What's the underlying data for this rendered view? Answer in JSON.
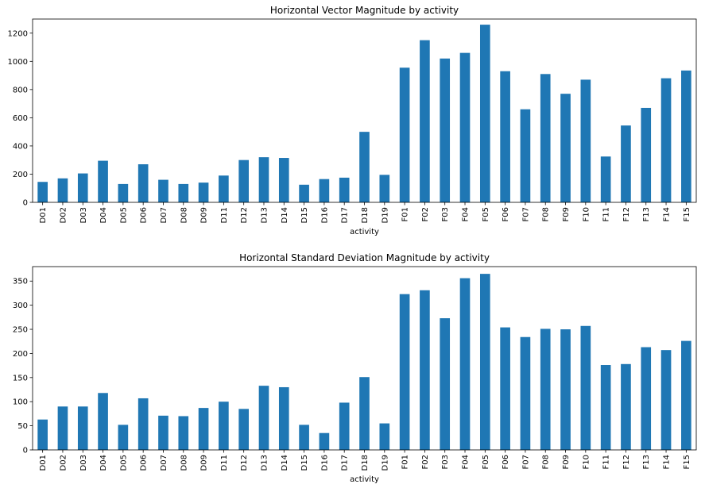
{
  "chart_data": [
    {
      "type": "bar",
      "title": "Horizontal Vector Magnitude by activity",
      "xlabel": "activity",
      "ylabel": "",
      "ylim": [
        0,
        1300
      ],
      "yticks": [
        0,
        200,
        400,
        600,
        800,
        1000,
        1200
      ],
      "grid": false,
      "color": "#1f77b4",
      "categories": [
        "D01",
        "D02",
        "D03",
        "D04",
        "D05",
        "D06",
        "D07",
        "D08",
        "D09",
        "D11",
        "D12",
        "D13",
        "D14",
        "D15",
        "D16",
        "D17",
        "D18",
        "D19",
        "F01",
        "F02",
        "F03",
        "F04",
        "F05",
        "F06",
        "F07",
        "F08",
        "F09",
        "F10",
        "F11",
        "F12",
        "F13",
        "F14",
        "F15"
      ],
      "values": [
        145,
        170,
        205,
        295,
        130,
        270,
        160,
        130,
        140,
        190,
        300,
        320,
        315,
        125,
        165,
        175,
        500,
        195,
        955,
        1150,
        1020,
        1060,
        1260,
        930,
        660,
        910,
        770,
        870,
        325,
        545,
        670,
        880,
        935
      ]
    },
    {
      "type": "bar",
      "title": "Horizontal Standard Deviation Magnitude by activity",
      "xlabel": "activity",
      "ylabel": "",
      "ylim": [
        0,
        380
      ],
      "yticks": [
        0,
        50,
        100,
        150,
        200,
        250,
        300,
        350
      ],
      "grid": false,
      "color": "#1f77b4",
      "categories": [
        "D01",
        "D02",
        "D03",
        "D04",
        "D05",
        "D06",
        "D07",
        "D08",
        "D09",
        "D11",
        "D12",
        "D13",
        "D14",
        "D15",
        "D16",
        "D17",
        "D18",
        "D19",
        "F01",
        "F02",
        "F03",
        "F04",
        "F05",
        "F06",
        "F07",
        "F08",
        "F09",
        "F10",
        "F11",
        "F12",
        "F13",
        "F14",
        "F15"
      ],
      "values": [
        63,
        90,
        90,
        118,
        52,
        107,
        71,
        70,
        87,
        100,
        85,
        133,
        130,
        52,
        35,
        98,
        151,
        55,
        323,
        331,
        273,
        356,
        365,
        254,
        234,
        251,
        250,
        257,
        176,
        178,
        213,
        207,
        226
      ]
    }
  ]
}
